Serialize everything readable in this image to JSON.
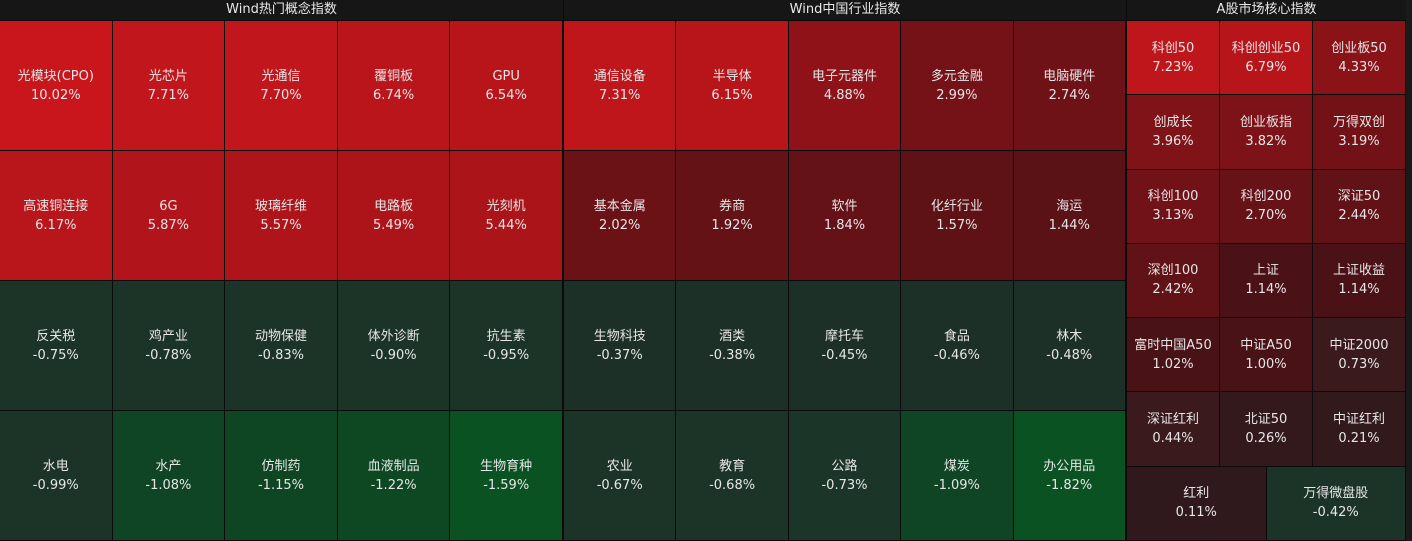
{
  "panels": [
    {
      "title": "Wind热门概念指数",
      "columns": 5,
      "tiles": [
        {
          "name": "光模块(CPO)",
          "change": "10.02%",
          "color": "#c9161c"
        },
        {
          "name": "光芯片",
          "change": "7.71%",
          "color": "#c2161d"
        },
        {
          "name": "光通信",
          "change": "7.70%",
          "color": "#c2161d"
        },
        {
          "name": "覆铜板",
          "change": "6.74%",
          "color": "#ba151b"
        },
        {
          "name": "GPU",
          "change": "6.54%",
          "color": "#b8151b"
        },
        {
          "name": "高速铜连接",
          "change": "6.17%",
          "color": "#b9161c"
        },
        {
          "name": "6G",
          "change": "5.87%",
          "color": "#b1141a"
        },
        {
          "name": "玻璃纤维",
          "change": "5.57%",
          "color": "#ae1419"
        },
        {
          "name": "电路板",
          "change": "5.49%",
          "color": "#ac1419"
        },
        {
          "name": "光刻机",
          "change": "5.44%",
          "color": "#ab1419"
        },
        {
          "name": "反关税",
          "change": "-0.75%",
          "color": "#1c3428"
        },
        {
          "name": "鸡产业",
          "change": "-0.78%",
          "color": "#1c3428"
        },
        {
          "name": "动物保健",
          "change": "-0.83%",
          "color": "#1c3428"
        },
        {
          "name": "体外诊断",
          "change": "-0.90%",
          "color": "#1c3428"
        },
        {
          "name": "抗生素",
          "change": "-0.95%",
          "color": "#1c3428"
        },
        {
          "name": "水电",
          "change": "-0.99%",
          "color": "#1c3428"
        },
        {
          "name": "水产",
          "change": "-1.08%",
          "color": "#0f4424"
        },
        {
          "name": "仿制药",
          "change": "-1.15%",
          "color": "#0e4624"
        },
        {
          "name": "血液制品",
          "change": "-1.22%",
          "color": "#0d4823"
        },
        {
          "name": "生物育种",
          "change": "-1.59%",
          "color": "#0b5223"
        }
      ]
    },
    {
      "title": "Wind中国行业指数",
      "columns": 5,
      "tiles": [
        {
          "name": "通信设备",
          "change": "7.31%",
          "color": "#bf161c"
        },
        {
          "name": "半导体",
          "change": "6.15%",
          "color": "#b8151b"
        },
        {
          "name": "电子元器件",
          "change": "4.88%",
          "color": "#8e1218"
        },
        {
          "name": "多元金融",
          "change": "2.99%",
          "color": "#741218"
        },
        {
          "name": "电脑硬件",
          "change": "2.74%",
          "color": "#6f1217"
        },
        {
          "name": "基本金属",
          "change": "2.02%",
          "color": "#6b1217"
        },
        {
          "name": "券商",
          "change": "1.92%",
          "color": "#651217"
        },
        {
          "name": "软件",
          "change": "1.84%",
          "color": "#641217"
        },
        {
          "name": "化纤行业",
          "change": "1.57%",
          "color": "#5e1216"
        },
        {
          "name": "海运",
          "change": "1.44%",
          "color": "#5a1216"
        },
        {
          "name": "生物科技",
          "change": "-0.37%",
          "color": "#1d3028"
        },
        {
          "name": "酒类",
          "change": "-0.38%",
          "color": "#1d3028"
        },
        {
          "name": "摩托车",
          "change": "-0.45%",
          "color": "#1d3028"
        },
        {
          "name": "食品",
          "change": "-0.46%",
          "color": "#1d3028"
        },
        {
          "name": "林木",
          "change": "-0.48%",
          "color": "#1d3028"
        },
        {
          "name": "农业",
          "change": "-0.67%",
          "color": "#1c3428"
        },
        {
          "name": "教育",
          "change": "-0.68%",
          "color": "#1c3428"
        },
        {
          "name": "公路",
          "change": "-0.73%",
          "color": "#1b3628"
        },
        {
          "name": "煤炭",
          "change": "-1.09%",
          "color": "#0f4424"
        },
        {
          "name": "办公用品",
          "change": "-1.82%",
          "color": "#0b5223"
        }
      ]
    },
    {
      "title": "A股市场核心指数",
      "columns": 3,
      "tiles": [
        {
          "name": "科创50",
          "change": "7.23%",
          "color": "#bf161c"
        },
        {
          "name": "科创创业50",
          "change": "6.79%",
          "color": "#b8151b"
        },
        {
          "name": "创业板50",
          "change": "4.33%",
          "color": "#8a1318"
        },
        {
          "name": "创成长",
          "change": "3.96%",
          "color": "#801318"
        },
        {
          "name": "创业板指",
          "change": "3.82%",
          "color": "#7d1318"
        },
        {
          "name": "万得双创",
          "change": "3.19%",
          "color": "#721217"
        },
        {
          "name": "科创100",
          "change": "3.13%",
          "color": "#701217"
        },
        {
          "name": "科创200",
          "change": "2.70%",
          "color": "#661217"
        },
        {
          "name": "深证50",
          "change": "2.44%",
          "color": "#601216"
        },
        {
          "name": "深创100",
          "change": "2.42%",
          "color": "#601216"
        },
        {
          "name": "上证",
          "change": "1.14%",
          "color": "#4a1216"
        },
        {
          "name": "上证收益",
          "change": "1.14%",
          "color": "#4a1216"
        },
        {
          "name": "富时中国A50",
          "change": "1.02%",
          "color": "#481216"
        },
        {
          "name": "中证A50",
          "change": "1.00%",
          "color": "#481216"
        },
        {
          "name": "中证2000",
          "change": "0.73%",
          "color": "#3a1a1d"
        },
        {
          "name": "深证红利",
          "change": "0.44%",
          "color": "#3b1a1d"
        },
        {
          "name": "北证50",
          "change": "0.26%",
          "color": "#33191c"
        },
        {
          "name": "中证红利",
          "change": "0.21%",
          "color": "#32191c"
        },
        {
          "name": "红利",
          "change": "0.11%",
          "color": "#30191c"
        },
        {
          "name": "万得微盘股",
          "change": "-0.42%",
          "color": "#1c3428"
        }
      ]
    }
  ]
}
